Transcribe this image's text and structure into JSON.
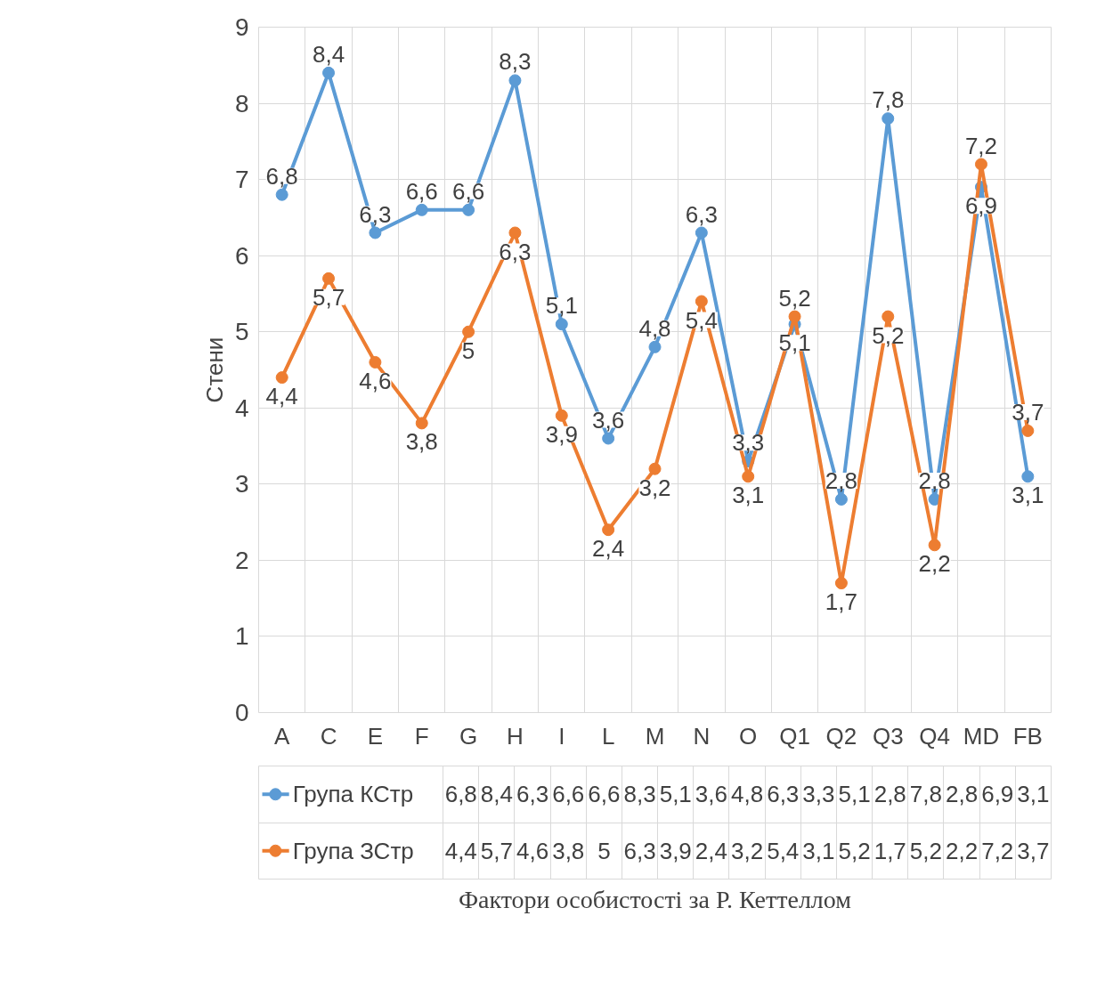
{
  "chart_data": {
    "type": "line",
    "ylabel": "Стени",
    "annotations": [
      "Фактори особистості за Р. Кеттеллом"
    ],
    "categories": [
      "A",
      "C",
      "E",
      "F",
      "G",
      "H",
      "I",
      "L",
      "M",
      "N",
      "O",
      "Q1",
      "Q2",
      "Q3",
      "Q4",
      "MD",
      "FB"
    ],
    "series": [
      {
        "name": "Група КСтр",
        "color": "#5b9bd5",
        "values": [
          6.8,
          8.4,
          6.3,
          6.6,
          6.6,
          8.3,
          5.1,
          3.6,
          4.8,
          6.3,
          3.3,
          5.1,
          2.8,
          7.8,
          2.8,
          6.9,
          3.1
        ],
        "value_labels": [
          "6,8",
          "8,4",
          "6,3",
          "6,6",
          "6,6",
          "8,3",
          "5,1",
          "3,6",
          "4,8",
          "6,3",
          "3,3",
          "5,1",
          "2,8",
          "7,8",
          "2,8",
          "6,9",
          "3,1"
        ]
      },
      {
        "name": "Група ЗСтр",
        "color": "#ed7d31",
        "values": [
          4.4,
          5.7,
          4.6,
          3.8,
          5,
          6.3,
          3.9,
          2.4,
          3.2,
          5.4,
          3.1,
          5.2,
          1.7,
          5.2,
          2.2,
          7.2,
          3.7
        ],
        "value_labels": [
          "4,4",
          "5,7",
          "4,6",
          "3,8",
          "5",
          "6,3",
          "3,9",
          "2,4",
          "3,2",
          "5,4",
          "3,1",
          "5,2",
          "1,7",
          "5,2",
          "2,2",
          "7,2",
          "3,7"
        ]
      }
    ],
    "ylim": [
      0,
      9
    ],
    "yticks": [
      0,
      1,
      2,
      3,
      4,
      5,
      6,
      7,
      8,
      9
    ],
    "grid": true,
    "legend": "bottom",
    "marker": "circle",
    "line_style": "solid"
  }
}
